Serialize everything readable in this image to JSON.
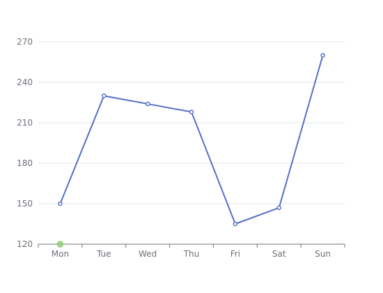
{
  "chart_data": {
    "type": "line",
    "categories": [
      "Mon",
      "Tue",
      "Wed",
      "Thu",
      "Fri",
      "Sat",
      "Sun"
    ],
    "series": [
      {
        "values": [
          150,
          230,
          224,
          218,
          135,
          147,
          260
        ],
        "color": "#5470c6"
      }
    ],
    "y_ticks": [
      120,
      150,
      180,
      210,
      240,
      270
    ],
    "ylim": [
      120,
      270
    ],
    "grid": true,
    "axis_pointer_color": "#91cc75"
  }
}
